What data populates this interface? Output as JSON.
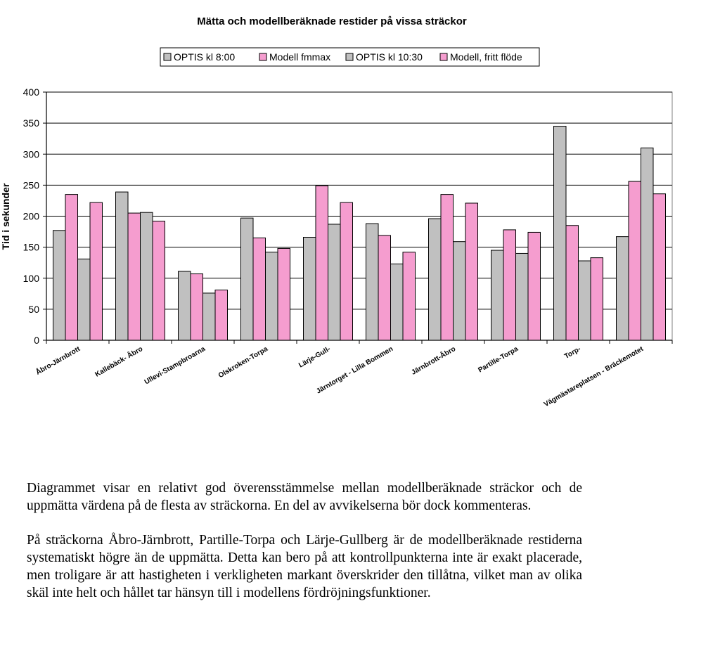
{
  "chart_data": {
    "type": "bar",
    "title": "Mätta och modellberäknade restider på vissa sträckor",
    "ylabel": "Tid i sekunder",
    "xlabel": "",
    "ylim": [
      0,
      400
    ],
    "yticks": [
      0,
      50,
      100,
      150,
      200,
      250,
      300,
      350,
      400
    ],
    "grid": true,
    "legend_position": "top",
    "categories": [
      "Åbro-Järnbrott",
      "Kallebäck- Åbro",
      "Ullevi-Stampbroarna",
      "Olskroken-Torpa",
      "Lärje-Gull-",
      "Järntorget - Lilla Bommen",
      "Järnbrott-Åbro",
      "Partille-Torpa",
      "Torp-",
      "Vägmästareplatsen - Bräckemotet"
    ],
    "series": [
      {
        "name": "OPTIS kl 8:00",
        "color": "#c0c0c0",
        "values": [
          177,
          239,
          111,
          197,
          166,
          188,
          196,
          145,
          345,
          167
        ]
      },
      {
        "name": "Modell fmmax",
        "color": "#f59dcf",
        "values": [
          235,
          205,
          107,
          165,
          249,
          169,
          235,
          178,
          185,
          256
        ]
      },
      {
        "name": "OPTIS kl 10:30",
        "color": "#c0c0c0",
        "values": [
          131,
          206,
          76,
          142,
          187,
          123,
          159,
          140,
          128,
          310
        ]
      },
      {
        "name": "Modell, fritt flöde",
        "color": "#f59dcf",
        "values": [
          222,
          192,
          81,
          148,
          222,
          142,
          221,
          174,
          133,
          236
        ]
      }
    ]
  },
  "text": {
    "paragraph1": "Diagrammet visar en relativt god överensstämmelse mellan modellberäknade sträckor och de uppmätta värdena på de flesta av sträckorna. En del av avvikelserna bör dock kommenteras.",
    "paragraph2": "På sträckorna Åbro-Järnbrott,  Partille-Torpa och Lärje-Gullberg är de modellberäknade restiderna systematiskt högre än de uppmätta. Detta kan bero på att kontrollpunkterna inte är exakt placerade, men troligare är att hastigheten i verkligheten markant överskrider den tillåtna, vilket man av olika skäl inte helt och hållet tar hänsyn till i modellens fördröjningsfunktioner."
  }
}
